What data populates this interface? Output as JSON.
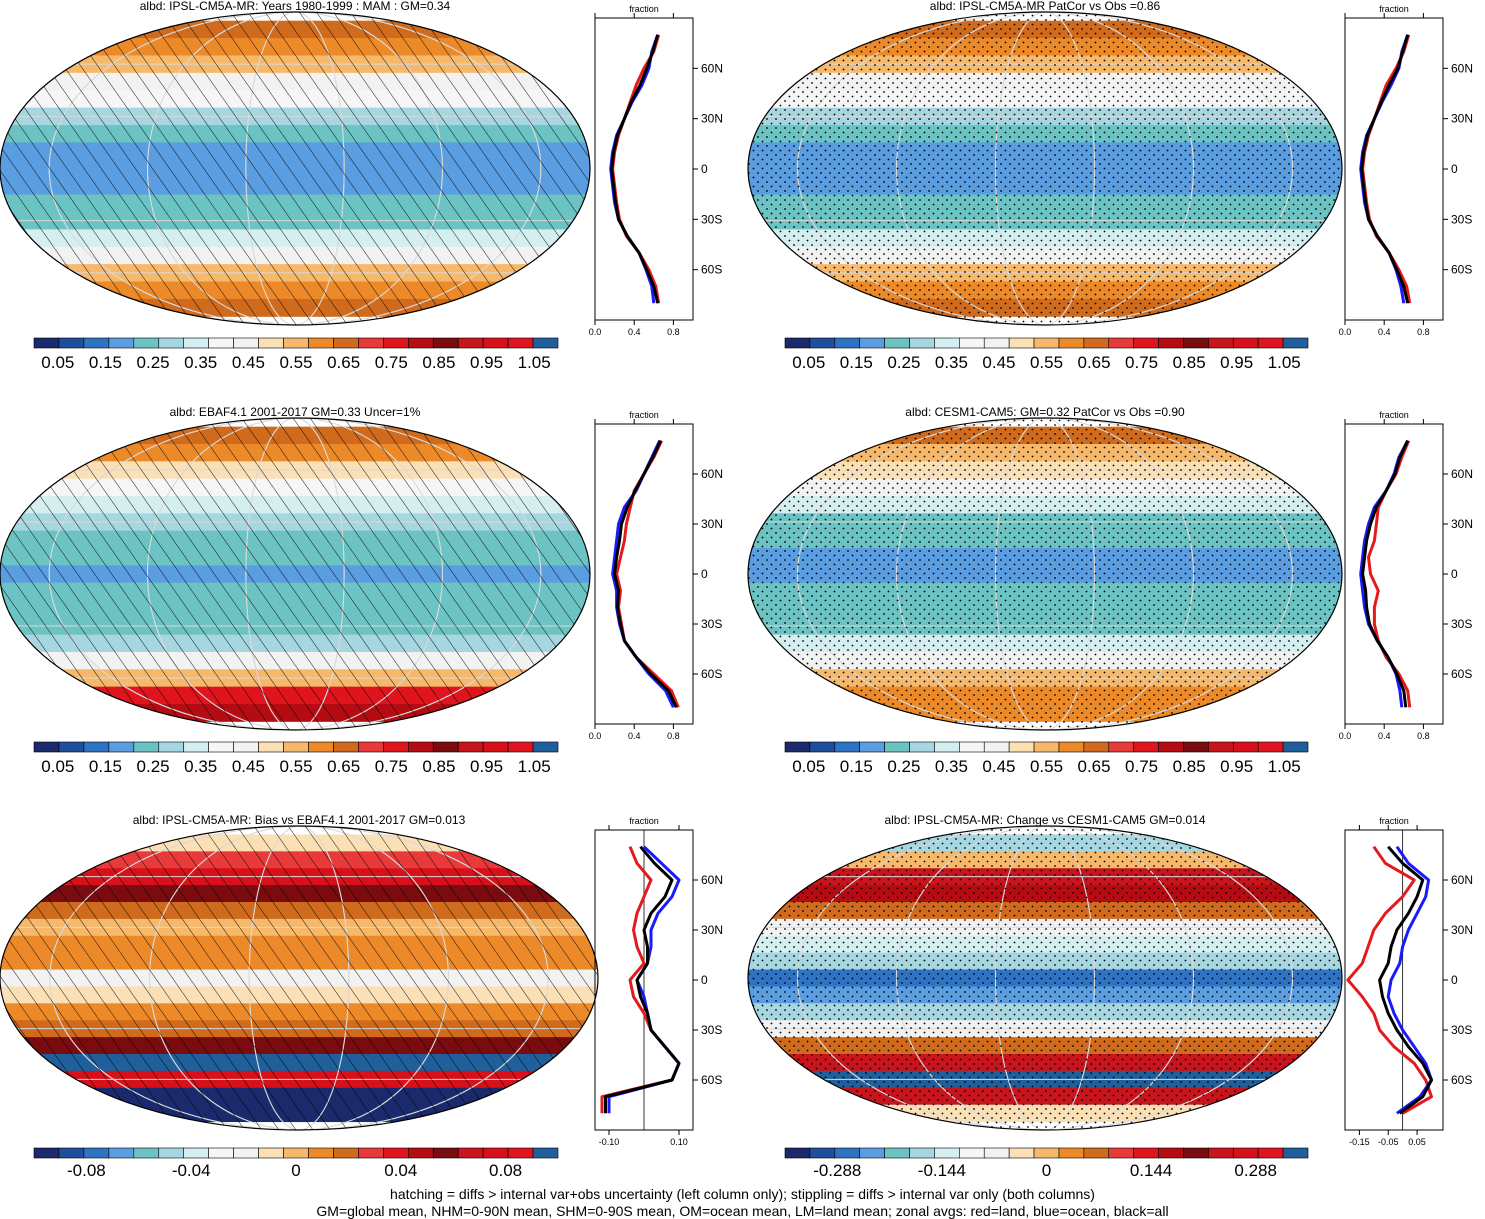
{
  "footer": {
    "line1": "hatching = diffs > internal var+obs uncertainty (left column only); stippling = diffs > internal var only (both columns)",
    "line2": "GM=global mean, NHM=0-90N mean, SHM=0-90S mean, OM=ocean mean, LM=land mean; zonal avgs: red=land, blue=ocean, black=all"
  },
  "colors": {
    "land": "#e41a1c",
    "ocean": "#1a1aff",
    "all": "#000000"
  },
  "palettes": {
    "albedo": [
      "#1a2a6c",
      "#1f4e9c",
      "#2f74c4",
      "#5a9de0",
      "#6cc3c3",
      "#a6d6e0",
      "#d5eef0",
      "#f6f6f6",
      "#f2f2f2",
      "#fbe0b6",
      "#f6b86a",
      "#ec8a2a",
      "#d06a1c",
      "#e83a3a",
      "#e0141c",
      "#b40c12",
      "#7a0c10",
      "#c8141c",
      "#d8101a",
      "#e01420",
      "#1f5f9c"
    ],
    "diff": [
      "#1a2a6c",
      "#1f4e9c",
      "#2f74c4",
      "#5a9de0",
      "#6cc3c3",
      "#a6d6e0",
      "#d5eef0",
      "#f6f6f6",
      "#f2f2f2",
      "#fbe0b6",
      "#f6b86a",
      "#ec8a2a",
      "#d06a1c",
      "#e83a3a",
      "#e0141c",
      "#b40c12",
      "#7a0c10",
      "#c8141c",
      "#d8101a",
      "#e01420",
      "#1f5f9c"
    ]
  },
  "chart_data": [
    {
      "type": "heatmap",
      "title": "albd: IPSL-CM5A-MR: Years 1980-1999 : MAM : GM=0.34",
      "palette": "albedo",
      "pattern": "hatch",
      "colorbar_labels": [
        "0.05",
        "0.15",
        "0.25",
        "0.35",
        "0.45",
        "0.55",
        "0.65",
        "0.75",
        "0.85",
        "0.95",
        "1.05"
      ],
      "zonal_profile": {
        "xlabel": "fraction",
        "xlim": [
          0,
          1.0
        ],
        "xticks": [
          "0.0",
          "0.4",
          "0.8"
        ],
        "ylim": [
          -90,
          90
        ],
        "yticks": [
          "60N",
          "30N",
          "0",
          "30S",
          "60S"
        ],
        "ytick_values": [
          60,
          30,
          0,
          -30,
          -60
        ],
        "lat": [
          80,
          70,
          60,
          50,
          40,
          30,
          20,
          10,
          0,
          -10,
          -20,
          -30,
          -40,
          -50,
          -60,
          -70,
          -80
        ],
        "series": [
          {
            "name": "land",
            "color": "land",
            "values": [
              0.65,
              0.6,
              0.5,
              0.42,
              0.36,
              0.3,
              0.24,
              0.2,
              0.18,
              0.2,
              0.22,
              0.25,
              0.32,
              0.45,
              0.55,
              0.62,
              0.65
            ]
          },
          {
            "name": "ocean",
            "color": "ocean",
            "values": [
              0.64,
              0.58,
              0.55,
              0.48,
              0.38,
              0.3,
              0.22,
              0.18,
              0.16,
              0.18,
              0.2,
              0.24,
              0.33,
              0.45,
              0.52,
              0.58,
              0.6
            ]
          },
          {
            "name": "all",
            "color": "all",
            "values": [
              0.64,
              0.59,
              0.53,
              0.46,
              0.37,
              0.3,
              0.23,
              0.19,
              0.17,
              0.19,
              0.21,
              0.24,
              0.33,
              0.45,
              0.53,
              0.6,
              0.64
            ]
          }
        ]
      }
    },
    {
      "type": "heatmap",
      "title": "albd: IPSL-CM5A-MR PatCor vs Obs =0.86",
      "palette": "albedo",
      "pattern": "stipple",
      "colorbar_labels": [
        "0.05",
        "0.15",
        "0.25",
        "0.35",
        "0.45",
        "0.55",
        "0.65",
        "0.75",
        "0.85",
        "0.95",
        "1.05"
      ],
      "zonal_profile": {
        "xlabel": "fraction",
        "xlim": [
          0,
          1.0
        ],
        "xticks": [
          "0.0",
          "0.4",
          "0.8"
        ],
        "ylim": [
          -90,
          90
        ],
        "yticks": [
          "60N",
          "30N",
          "0",
          "30S",
          "60S"
        ],
        "ytick_values": [
          60,
          30,
          0,
          -30,
          -60
        ],
        "lat": [
          80,
          70,
          60,
          50,
          40,
          30,
          20,
          10,
          0,
          -10,
          -20,
          -30,
          -40,
          -50,
          -60,
          -70,
          -80
        ],
        "series": [
          {
            "name": "land",
            "color": "land",
            "values": [
              0.65,
              0.6,
              0.52,
              0.42,
              0.36,
              0.3,
              0.24,
              0.2,
              0.18,
              0.2,
              0.22,
              0.25,
              0.32,
              0.45,
              0.55,
              0.63,
              0.66
            ]
          },
          {
            "name": "ocean",
            "color": "ocean",
            "values": [
              0.64,
              0.58,
              0.55,
              0.47,
              0.38,
              0.3,
              0.22,
              0.18,
              0.16,
              0.18,
              0.2,
              0.24,
              0.33,
              0.45,
              0.52,
              0.57,
              0.6
            ]
          },
          {
            "name": "all",
            "color": "all",
            "values": [
              0.64,
              0.59,
              0.54,
              0.45,
              0.37,
              0.3,
              0.23,
              0.19,
              0.17,
              0.19,
              0.21,
              0.24,
              0.33,
              0.45,
              0.53,
              0.6,
              0.64
            ]
          }
        ]
      }
    },
    {
      "type": "heatmap",
      "title": "albd: EBAF4.1 2001-2017 GM=0.33 Uncer=1%",
      "palette": "albedo",
      "pattern": "hatch",
      "colorbar_labels": [
        "0.05",
        "0.15",
        "0.25",
        "0.35",
        "0.45",
        "0.55",
        "0.65",
        "0.75",
        "0.85",
        "0.95",
        "1.05"
      ],
      "zonal_profile": {
        "xlabel": "fraction",
        "xlim": [
          0,
          1.0
        ],
        "xticks": [
          "0.0",
          "0.4",
          "0.8"
        ],
        "ylim": [
          -90,
          90
        ],
        "yticks": [
          "60N",
          "30N",
          "0",
          "30S",
          "60S"
        ],
        "ytick_values": [
          60,
          30,
          0,
          -30,
          -60
        ],
        "lat": [
          80,
          70,
          60,
          50,
          40,
          30,
          20,
          10,
          0,
          -10,
          -20,
          -30,
          -40,
          -50,
          -60,
          -70,
          -80
        ],
        "series": [
          {
            "name": "land",
            "color": "land",
            "values": [
              0.68,
              0.6,
              0.5,
              0.4,
              0.36,
              0.32,
              0.3,
              0.26,
              0.22,
              0.26,
              0.24,
              0.27,
              0.3,
              0.42,
              0.6,
              0.78,
              0.85
            ]
          },
          {
            "name": "ocean",
            "color": "ocean",
            "values": [
              0.66,
              0.58,
              0.5,
              0.42,
              0.3,
              0.24,
              0.22,
              0.2,
              0.18,
              0.22,
              0.22,
              0.25,
              0.3,
              0.42,
              0.55,
              0.72,
              0.8
            ]
          },
          {
            "name": "all",
            "color": "all",
            "values": [
              0.67,
              0.59,
              0.5,
              0.41,
              0.33,
              0.27,
              0.25,
              0.22,
              0.2,
              0.24,
              0.23,
              0.26,
              0.3,
              0.42,
              0.57,
              0.75,
              0.83
            ]
          }
        ]
      }
    },
    {
      "type": "heatmap",
      "title": "albd: CESM1-CAM5: GM=0.32 PatCor vs Obs =0.90",
      "palette": "albedo",
      "pattern": "stipple",
      "colorbar_labels": [
        "0.05",
        "0.15",
        "0.25",
        "0.35",
        "0.45",
        "0.55",
        "0.65",
        "0.75",
        "0.85",
        "0.95",
        "1.05"
      ],
      "zonal_profile": {
        "xlabel": "fraction",
        "xlim": [
          0,
          1.0
        ],
        "xticks": [
          "0.0",
          "0.4",
          "0.8"
        ],
        "ylim": [
          -90,
          90
        ],
        "yticks": [
          "60N",
          "30N",
          "0",
          "30S",
          "60S"
        ],
        "ytick_values": [
          60,
          30,
          0,
          -30,
          -60
        ],
        "lat": [
          80,
          70,
          60,
          50,
          40,
          30,
          20,
          10,
          0,
          -10,
          -20,
          -30,
          -40,
          -50,
          -60,
          -70,
          -80
        ],
        "series": [
          {
            "name": "land",
            "color": "land",
            "values": [
              0.65,
              0.58,
              0.52,
              0.42,
              0.34,
              0.32,
              0.3,
              0.24,
              0.26,
              0.34,
              0.3,
              0.3,
              0.34,
              0.42,
              0.55,
              0.64,
              0.66
            ]
          },
          {
            "name": "ocean",
            "color": "ocean",
            "values": [
              0.64,
              0.55,
              0.5,
              0.42,
              0.3,
              0.24,
              0.2,
              0.18,
              0.16,
              0.18,
              0.2,
              0.24,
              0.33,
              0.44,
              0.52,
              0.56,
              0.58
            ]
          },
          {
            "name": "all",
            "color": "all",
            "values": [
              0.64,
              0.56,
              0.51,
              0.42,
              0.32,
              0.26,
              0.22,
              0.2,
              0.18,
              0.21,
              0.22,
              0.25,
              0.33,
              0.44,
              0.53,
              0.6,
              0.62
            ]
          }
        ]
      }
    },
    {
      "type": "heatmap",
      "title": "albd: IPSL-CM5A-MR: Bias vs EBAF4.1 2001-2017 GM=0.013",
      "palette": "diff",
      "pattern": "hatch",
      "colorbar_labels": [
        "-0.08",
        "-0.04",
        "0",
        "0.04",
        "0.08"
      ],
      "zonal_profile": {
        "xlabel": "fraction",
        "xlim": [
          -0.14,
          0.14
        ],
        "xticks": [
          "-0.10",
          "0.10"
        ],
        "ylim": [
          -90,
          90
        ],
        "yticks": [
          "60N",
          "30N",
          "0",
          "30S",
          "60S"
        ],
        "ytick_values": [
          60,
          30,
          0,
          -30,
          -60
        ],
        "lat": [
          80,
          70,
          60,
          50,
          40,
          30,
          20,
          10,
          0,
          -10,
          -20,
          -30,
          -40,
          -50,
          -60,
          -70,
          -80
        ],
        "series": [
          {
            "name": "land",
            "color": "land",
            "values": [
              -0.04,
              -0.02,
              0.02,
              0.0,
              -0.02,
              -0.03,
              -0.02,
              0.0,
              -0.04,
              -0.03,
              0.0,
              0.02,
              0.06,
              0.1,
              0.08,
              -0.12,
              -0.12
            ]
          },
          {
            "name": "ocean",
            "color": "ocean",
            "values": [
              0.0,
              0.05,
              0.1,
              0.08,
              0.04,
              0.02,
              0.02,
              0.01,
              -0.02,
              0.0,
              0.01,
              0.02,
              0.06,
              0.1,
              0.08,
              -0.1,
              -0.1
            ]
          },
          {
            "name": "all",
            "color": "all",
            "values": [
              -0.01,
              0.03,
              0.08,
              0.06,
              0.02,
              0.0,
              0.01,
              0.01,
              -0.02,
              -0.01,
              0.01,
              0.02,
              0.06,
              0.1,
              0.08,
              -0.11,
              -0.11
            ]
          }
        ]
      }
    },
    {
      "type": "heatmap",
      "title": "albd: IPSL-CM5A-MR: Change vs CESM1-CAM5 GM=0.014",
      "palette": "diff",
      "pattern": "stipple",
      "colorbar_labels": [
        "-0.288",
        "-0.144",
        "0",
        "0.144",
        "0.288"
      ],
      "zonal_profile": {
        "xlabel": "fraction",
        "xlim": [
          -0.2,
          0.14
        ],
        "xticks": [
          "-0.15",
          "-0.05",
          "0.05"
        ],
        "ylim": [
          -90,
          90
        ],
        "yticks": [
          "60N",
          "30N",
          "0",
          "30S",
          "60S"
        ],
        "ytick_values": [
          60,
          30,
          0,
          -30,
          -60
        ],
        "lat": [
          80,
          70,
          60,
          50,
          40,
          30,
          20,
          10,
          0,
          -10,
          -20,
          -30,
          -40,
          -50,
          -60,
          -70,
          -80
        ],
        "series": [
          {
            "name": "land",
            "color": "land",
            "values": [
              -0.1,
              -0.06,
              0.04,
              0.0,
              -0.06,
              -0.1,
              -0.12,
              -0.14,
              -0.19,
              -0.14,
              -0.1,
              -0.08,
              -0.03,
              0.04,
              0.08,
              0.1,
              0.0
            ]
          },
          {
            "name": "ocean",
            "color": "ocean",
            "values": [
              -0.02,
              0.02,
              0.09,
              0.08,
              0.05,
              0.02,
              0.0,
              -0.01,
              -0.04,
              -0.05,
              -0.03,
              0.0,
              0.04,
              0.08,
              0.1,
              0.06,
              -0.02
            ]
          },
          {
            "name": "all",
            "color": "all",
            "values": [
              -0.05,
              0.0,
              0.07,
              0.05,
              0.02,
              -0.02,
              -0.04,
              -0.05,
              -0.08,
              -0.07,
              -0.05,
              -0.02,
              0.02,
              0.07,
              0.1,
              0.07,
              -0.01
            ]
          }
        ]
      }
    }
  ]
}
